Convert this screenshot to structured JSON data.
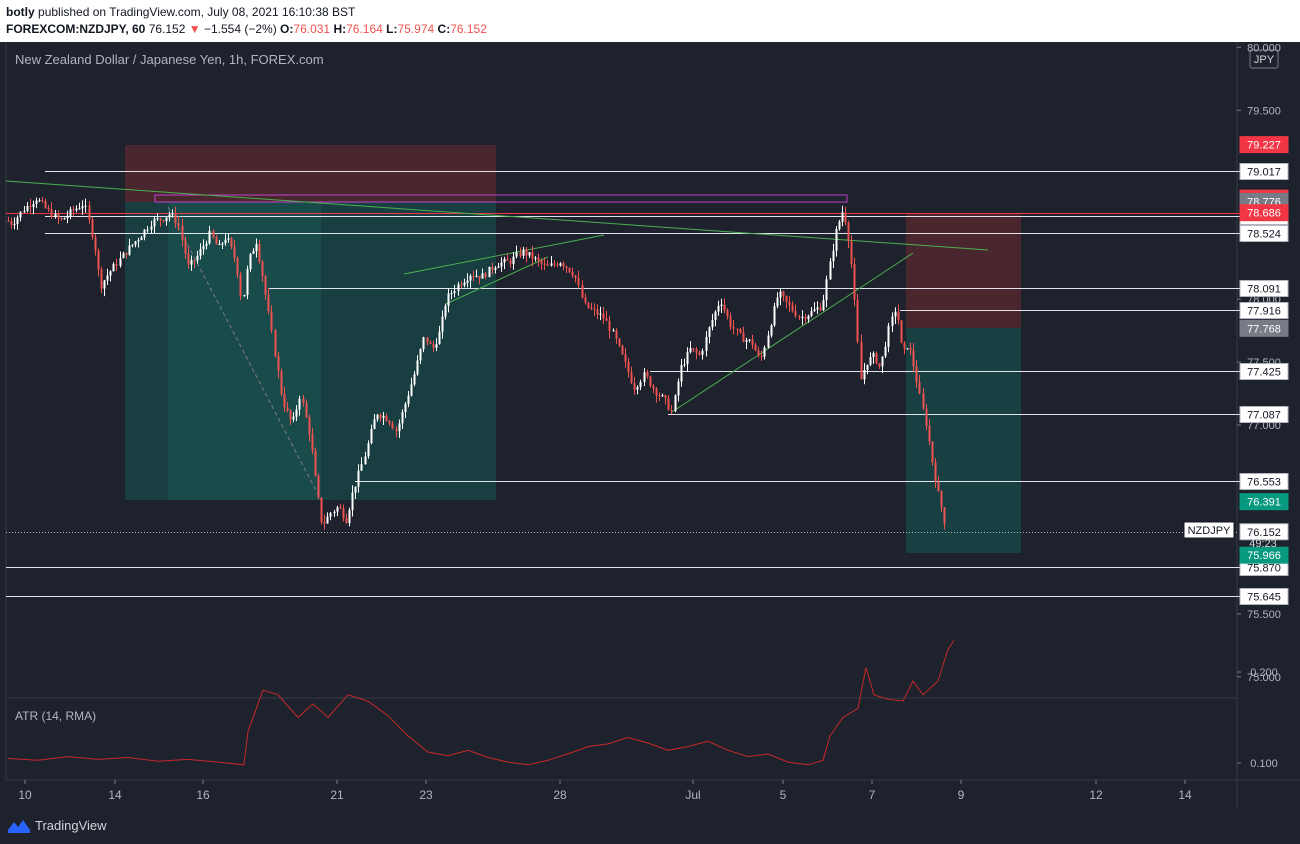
{
  "header": {
    "author": "botly",
    "published_text": "published on TradingView.com, July 08, 2021 16:10:38 BST",
    "symbol": "FOREXCOM:NZDJPY, 60",
    "last": "76.152",
    "change_arrow": "▼",
    "change": "−1.554 (−2%)",
    "o_label": "O:",
    "o_value": "76.031",
    "h_label": "H:",
    "h_value": "76.164",
    "l_label": "L:",
    "l_value": "75.974",
    "c_label": "C:",
    "c_value": "76.152"
  },
  "chart_data": {
    "type": "candlestick",
    "title": "New Zealand Dollar / Japanese Yen, 1h, FOREX.com",
    "currency_label": "JPY",
    "symbol_tag": "NZDJPY",
    "countdown": "49:23",
    "ylim": [
      74.7,
      80.0
    ],
    "price_ticks": [
      "80.000",
      "79.500",
      "78.000",
      "77.500",
      "77.000",
      "75.500",
      "75.000"
    ],
    "x_ticks": [
      "10",
      "14",
      "16",
      "21",
      "23",
      "28",
      "Jul",
      "5",
      "7",
      "9",
      "12",
      "14"
    ],
    "horizontal_levels": [
      "79.017",
      "78.657",
      "78.524",
      "78.091",
      "77.916",
      "77.425",
      "77.087",
      "76.553",
      "75.870",
      "75.645"
    ],
    "price_tags": [
      {
        "value": "79.227",
        "color": "#f23645"
      },
      {
        "value": "78.802",
        "color": "#f23645"
      },
      {
        "value": "78.776",
        "color": "#787b86"
      },
      {
        "value": "78.686",
        "color": "#f23645"
      },
      {
        "value": "77.768",
        "color": "#787b86"
      },
      {
        "value": "76.391",
        "color": "#089981"
      },
      {
        "value": "76.152",
        "color": "#ffffff"
      },
      {
        "value": "75.966",
        "color": "#089981"
      }
    ],
    "price_path": [
      [
        0,
        78.66
      ],
      [
        12,
        78.6
      ],
      [
        24,
        78.72
      ],
      [
        36,
        78.8
      ],
      [
        48,
        78.7
      ],
      [
        60,
        78.62
      ],
      [
        72,
        78.7
      ],
      [
        84,
        78.76
      ],
      [
        94,
        78.45
      ],
      [
        100,
        78.1
      ],
      [
        108,
        78.2
      ],
      [
        118,
        78.3
      ],
      [
        128,
        78.4
      ],
      [
        140,
        78.5
      ],
      [
        152,
        78.62
      ],
      [
        162,
        78.64
      ],
      [
        170,
        78.68
      ],
      [
        178,
        78.6
      ],
      [
        188,
        78.25
      ],
      [
        198,
        78.35
      ],
      [
        210,
        78.52
      ],
      [
        218,
        78.4
      ],
      [
        226,
        78.5
      ],
      [
        236,
        78.3
      ],
      [
        242,
        77.95
      ],
      [
        248,
        78.3
      ],
      [
        256,
        78.46
      ],
      [
        262,
        78.2
      ],
      [
        268,
        77.9
      ],
      [
        274,
        77.6
      ],
      [
        282,
        77.2
      ],
      [
        292,
        77.0
      ],
      [
        300,
        77.25
      ],
      [
        310,
        76.9
      ],
      [
        316,
        76.5
      ],
      [
        322,
        76.2
      ],
      [
        330,
        76.3
      ],
      [
        338,
        76.35
      ],
      [
        346,
        76.25
      ],
      [
        352,
        76.45
      ],
      [
        358,
        76.6
      ],
      [
        366,
        76.8
      ],
      [
        376,
        77.1
      ],
      [
        388,
        77.05
      ],
      [
        396,
        76.95
      ],
      [
        404,
        77.15
      ],
      [
        414,
        77.4
      ],
      [
        424,
        77.7
      ],
      [
        432,
        77.6
      ],
      [
        440,
        77.75
      ],
      [
        446,
        78.0
      ],
      [
        456,
        78.1
      ],
      [
        470,
        78.2
      ],
      [
        482,
        78.18
      ],
      [
        496,
        78.28
      ],
      [
        510,
        78.3
      ],
      [
        522,
        78.38
      ],
      [
        532,
        78.33
      ],
      [
        546,
        78.25
      ],
      [
        560,
        78.3
      ],
      [
        574,
        78.2
      ],
      [
        584,
        77.95
      ],
      [
        594,
        77.9
      ],
      [
        604,
        77.85
      ],
      [
        614,
        77.7
      ],
      [
        624,
        77.5
      ],
      [
        634,
        77.3
      ],
      [
        644,
        77.4
      ],
      [
        654,
        77.28
      ],
      [
        664,
        77.2
      ],
      [
        672,
        77.1
      ],
      [
        680,
        77.45
      ],
      [
        690,
        77.6
      ],
      [
        700,
        77.55
      ],
      [
        710,
        77.8
      ],
      [
        720,
        78.0
      ],
      [
        730,
        77.8
      ],
      [
        740,
        77.7
      ],
      [
        752,
        77.65
      ],
      [
        760,
        77.5
      ],
      [
        770,
        77.8
      ],
      [
        778,
        78.05
      ],
      [
        788,
        77.95
      ],
      [
        800,
        77.85
      ],
      [
        812,
        77.9
      ],
      [
        822,
        77.95
      ],
      [
        830,
        78.3
      ],
      [
        836,
        78.55
      ],
      [
        843,
        78.72
      ],
      [
        850,
        78.4
      ],
      [
        856,
        77.8
      ],
      [
        860,
        77.35
      ],
      [
        866,
        77.5
      ],
      [
        874,
        77.55
      ],
      [
        880,
        77.45
      ],
      [
        888,
        77.75
      ],
      [
        896,
        77.95
      ],
      [
        902,
        77.55
      ],
      [
        908,
        77.65
      ],
      [
        914,
        77.45
      ],
      [
        920,
        77.2
      ],
      [
        926,
        77.0
      ],
      [
        932,
        76.7
      ],
      [
        938,
        76.45
      ],
      [
        944,
        76.25
      ],
      [
        947,
        76.15
      ]
    ],
    "atr_label": "ATR (14, RMA)",
    "atr_ticks": [
      "0.200",
      "0.100"
    ],
    "atr_path": [
      [
        0,
        0.105
      ],
      [
        30,
        0.103
      ],
      [
        60,
        0.107
      ],
      [
        90,
        0.104
      ],
      [
        120,
        0.106
      ],
      [
        150,
        0.102
      ],
      [
        180,
        0.104
      ],
      [
        210,
        0.101
      ],
      [
        236,
        0.098
      ],
      [
        240,
        0.135
      ],
      [
        255,
        0.18
      ],
      [
        270,
        0.175
      ],
      [
        290,
        0.15
      ],
      [
        305,
        0.165
      ],
      [
        320,
        0.15
      ],
      [
        340,
        0.175
      ],
      [
        360,
        0.168
      ],
      [
        380,
        0.152
      ],
      [
        400,
        0.13
      ],
      [
        420,
        0.112
      ],
      [
        440,
        0.108
      ],
      [
        460,
        0.114
      ],
      [
        480,
        0.106
      ],
      [
        500,
        0.101
      ],
      [
        520,
        0.098
      ],
      [
        540,
        0.103
      ],
      [
        560,
        0.11
      ],
      [
        580,
        0.118
      ],
      [
        600,
        0.121
      ],
      [
        620,
        0.128
      ],
      [
        640,
        0.122
      ],
      [
        660,
        0.114
      ],
      [
        680,
        0.118
      ],
      [
        700,
        0.124
      ],
      [
        720,
        0.114
      ],
      [
        740,
        0.107
      ],
      [
        760,
        0.11
      ],
      [
        780,
        0.101
      ],
      [
        800,
        0.098
      ],
      [
        815,
        0.103
      ],
      [
        822,
        0.13
      ],
      [
        835,
        0.15
      ],
      [
        850,
        0.16
      ],
      [
        858,
        0.205
      ],
      [
        866,
        0.175
      ],
      [
        880,
        0.17
      ],
      [
        895,
        0.168
      ],
      [
        905,
        0.19
      ],
      [
        915,
        0.175
      ],
      [
        930,
        0.19
      ],
      [
        940,
        0.225
      ],
      [
        946,
        0.235
      ]
    ]
  },
  "footer": {
    "brand": "TradingView"
  }
}
